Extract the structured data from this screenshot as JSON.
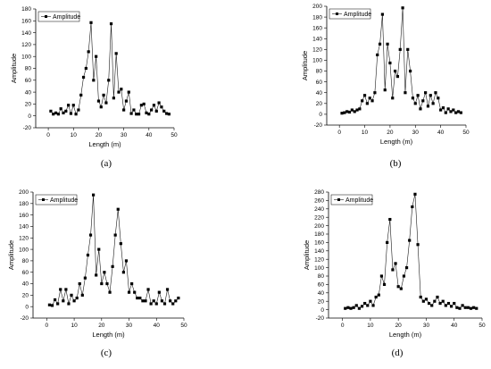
{
  "chart_data": [
    {
      "type": "line",
      "caption": "(a)",
      "xlabel": "Length (m)",
      "ylabel": "Amplitude",
      "xlim": [
        -5,
        50
      ],
      "ylim": [
        -20,
        180
      ],
      "xticks": [
        0,
        10,
        20,
        30,
        40,
        50
      ],
      "yticks": [
        -20,
        0,
        20,
        40,
        60,
        80,
        100,
        120,
        140,
        160,
        180
      ],
      "legend": "top-left",
      "series": [
        {
          "name": "Amplitude",
          "x": [
            1,
            2,
            3,
            4,
            5,
            6,
            7,
            8,
            9,
            10,
            11,
            12,
            13,
            14,
            15,
            16,
            17,
            18,
            19,
            20,
            21,
            22,
            23,
            24,
            25,
            26,
            27,
            28,
            29,
            30,
            31,
            32,
            33,
            34,
            35,
            36,
            37,
            38,
            39,
            40,
            41,
            42,
            43,
            44,
            45,
            46,
            47,
            48
          ],
          "values": [
            8,
            3,
            5,
            3,
            12,
            5,
            8,
            18,
            4,
            18,
            3,
            10,
            35,
            65,
            80,
            108,
            157,
            60,
            100,
            25,
            15,
            35,
            22,
            60,
            155,
            30,
            105,
            40,
            45,
            10,
            25,
            40,
            4,
            10,
            3,
            3,
            18,
            20,
            5,
            3,
            10,
            18,
            8,
            22,
            15,
            8,
            4,
            3
          ]
        }
      ]
    },
    {
      "type": "line",
      "caption": "(b)",
      "xlabel": "Length (m)",
      "ylabel": "Amplitude",
      "xlim": [
        -5,
        50
      ],
      "ylim": [
        -20,
        200
      ],
      "xticks": [
        0,
        10,
        20,
        30,
        40,
        50
      ],
      "yticks": [
        -20,
        0,
        20,
        40,
        60,
        80,
        100,
        120,
        140,
        160,
        180,
        200
      ],
      "legend": "top-left",
      "series": [
        {
          "name": "Amplitude",
          "x": [
            1,
            2,
            3,
            4,
            5,
            6,
            7,
            8,
            9,
            10,
            11,
            12,
            13,
            14,
            15,
            16,
            17,
            18,
            19,
            20,
            21,
            22,
            23,
            24,
            25,
            26,
            27,
            28,
            29,
            30,
            31,
            32,
            33,
            34,
            35,
            36,
            37,
            38,
            39,
            40,
            41,
            42,
            43,
            44,
            45,
            46,
            47,
            48
          ],
          "values": [
            2,
            3,
            5,
            4,
            8,
            5,
            8,
            10,
            25,
            35,
            20,
            30,
            25,
            40,
            110,
            130,
            185,
            45,
            130,
            95,
            30,
            80,
            70,
            120,
            197,
            40,
            120,
            80,
            30,
            20,
            35,
            10,
            25,
            40,
            15,
            35,
            20,
            40,
            30,
            8,
            12,
            3,
            10,
            5,
            8,
            3,
            5,
            3
          ]
        }
      ]
    },
    {
      "type": "line",
      "caption": "(c)",
      "xlabel": "Length (m)",
      "ylabel": "Amplitude",
      "xlim": [
        -5,
        50
      ],
      "ylim": [
        -20,
        200
      ],
      "xticks": [
        0,
        10,
        20,
        30,
        40,
        50
      ],
      "yticks": [
        -20,
        0,
        20,
        40,
        60,
        80,
        100,
        120,
        140,
        160,
        180,
        200
      ],
      "legend": "top-left",
      "series": [
        {
          "name": "Amplitude",
          "x": [
            1,
            2,
            3,
            4,
            5,
            6,
            7,
            8,
            9,
            10,
            11,
            12,
            13,
            14,
            15,
            16,
            17,
            18,
            19,
            20,
            21,
            22,
            23,
            24,
            25,
            26,
            27,
            28,
            29,
            30,
            31,
            32,
            33,
            34,
            35,
            36,
            37,
            38,
            39,
            40,
            41,
            42,
            43,
            44,
            45,
            46,
            47,
            48
          ],
          "values": [
            3,
            2,
            12,
            5,
            30,
            10,
            30,
            5,
            20,
            10,
            15,
            40,
            20,
            50,
            90,
            125,
            195,
            55,
            100,
            40,
            60,
            40,
            25,
            70,
            125,
            170,
            110,
            60,
            80,
            25,
            40,
            25,
            15,
            15,
            10,
            10,
            30,
            5,
            10,
            5,
            25,
            10,
            5,
            30,
            10,
            5,
            10,
            15
          ]
        }
      ]
    },
    {
      "type": "line",
      "caption": "(d)",
      "xlabel": "Length (m)",
      "ylabel": "Amplitude",
      "xlim": [
        -5,
        50
      ],
      "ylim": [
        -20,
        280
      ],
      "xticks": [
        0,
        10,
        20,
        30,
        40,
        50
      ],
      "yticks": [
        -20,
        0,
        20,
        40,
        60,
        80,
        100,
        120,
        140,
        160,
        180,
        200,
        220,
        240,
        260,
        280
      ],
      "legend": "top-left",
      "series": [
        {
          "name": "Amplitude",
          "x": [
            1,
            2,
            3,
            4,
            5,
            6,
            7,
            8,
            9,
            10,
            11,
            12,
            13,
            14,
            15,
            16,
            17,
            18,
            19,
            20,
            21,
            22,
            23,
            24,
            25,
            26,
            27,
            28,
            29,
            30,
            31,
            32,
            33,
            34,
            35,
            36,
            37,
            38,
            39,
            40,
            41,
            42,
            43,
            44,
            45,
            46,
            47,
            48
          ],
          "values": [
            3,
            5,
            3,
            5,
            10,
            3,
            8,
            15,
            10,
            20,
            10,
            30,
            35,
            80,
            60,
            160,
            215,
            95,
            110,
            55,
            50,
            80,
            100,
            165,
            245,
            275,
            155,
            30,
            20,
            25,
            15,
            10,
            20,
            30,
            15,
            20,
            10,
            15,
            8,
            15,
            5,
            3,
            10,
            5,
            5,
            3,
            5,
            3
          ]
        }
      ]
    }
  ]
}
